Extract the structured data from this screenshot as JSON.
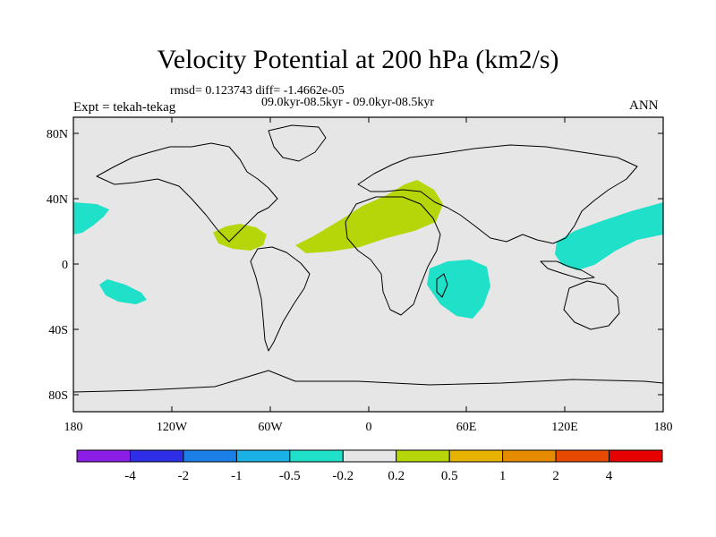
{
  "title": "Velocity Potential at 200 hPa (km2/s)",
  "stats_line": "rmsd= 0.123743 diff= -1.4662e-05",
  "runs_line": "09.0kyr-08.5kyr - 09.0kyr-08.5kyr",
  "left_label": "Expt = tekah-tekag",
  "right_label": "ANN",
  "lat_ticks": [
    "80N",
    "40N",
    "0",
    "40S",
    "80S"
  ],
  "lon_ticks": [
    "180",
    "120W",
    "60W",
    "0",
    "60E",
    "120E",
    "180"
  ],
  "colors": {
    "background": "#e6e6e6",
    "negative_anomaly": "#1fe0c8",
    "positive_anomaly": "#b7d60a",
    "coast": "#000000"
  },
  "map_regions": [
    {
      "name": "negative-anomaly-north-pacific",
      "sign": "negative",
      "level": "-0.5 to -0.2"
    },
    {
      "name": "negative-anomaly-south-pacific",
      "sign": "negative",
      "level": "-0.5 to -0.2"
    },
    {
      "name": "negative-anomaly-indian-ocean",
      "sign": "negative",
      "level": "-0.5 to -0.2"
    },
    {
      "name": "negative-anomaly-western-pacific",
      "sign": "negative",
      "level": "-0.5 to -0.2"
    },
    {
      "name": "positive-anomaly-caribbean",
      "sign": "positive",
      "level": "0.2 to 0.5"
    },
    {
      "name": "positive-anomaly-north-africa",
      "sign": "positive",
      "level": "0.2 to 0.5"
    }
  ],
  "colorbar": {
    "colors": [
      "#8b1de6",
      "#2e2ee6",
      "#1a7fe6",
      "#1ab2e6",
      "#1fe0c8",
      "#e6e6e6",
      "#b7d60a",
      "#e6b400",
      "#e68a00",
      "#e64a00",
      "#e60000"
    ],
    "labels": [
      "-4",
      "-2",
      "-1",
      "-0.5",
      "-0.2",
      "0.2",
      "0.5",
      "1",
      "2",
      "4"
    ]
  }
}
